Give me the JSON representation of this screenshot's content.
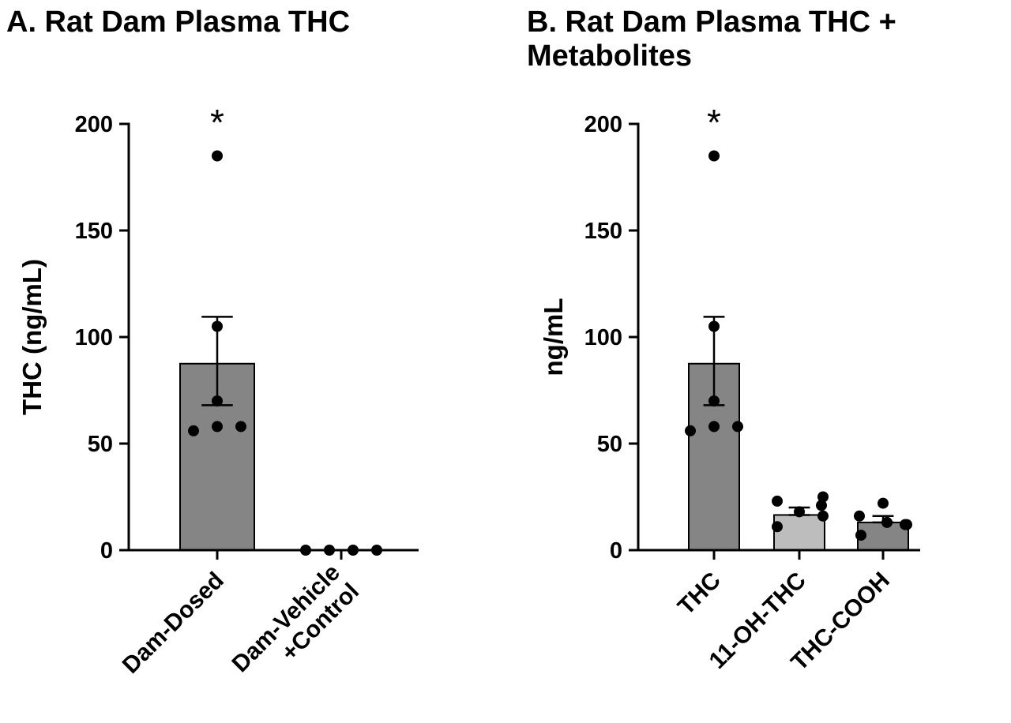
{
  "chart_data": [
    {
      "type": "bar",
      "title": "A. Rat Dam Plasma THC",
      "ylabel": "THC (ng/mL)",
      "ylim": [
        0,
        200
      ],
      "yticks": [
        "0",
        "50",
        "100",
        "150",
        "200"
      ],
      "categories": [
        "Dam-Dosed",
        "Dam-Vehicle\n+Control"
      ],
      "values": [
        87.5,
        0
      ],
      "error_upper": [
        109.5,
        0
      ],
      "error_lower": [
        68,
        0
      ],
      "points": [
        [
          185,
          105,
          70,
          56,
          58,
          58
        ],
        [
          0,
          0,
          0,
          0
        ]
      ],
      "significance": [
        "*",
        ""
      ],
      "bar_colors": [
        "#858585",
        "#858585"
      ],
      "grid": false
    },
    {
      "type": "bar",
      "title": "B. Rat Dam Plasma THC +\nMetabolites",
      "ylabel": "ng/mL",
      "ylim": [
        0,
        200
      ],
      "yticks": [
        "0",
        "50",
        "100",
        "150",
        "200"
      ],
      "categories": [
        "THC",
        "11-OH-THC",
        "THC-COOH"
      ],
      "values": [
        87.5,
        16.5,
        13
      ],
      "error_upper": [
        109.5,
        20,
        16
      ],
      "error_lower": [
        68,
        16.5,
        13
      ],
      "points": [
        [
          185,
          105,
          70,
          56,
          58,
          58
        ],
        [
          23,
          11,
          18,
          21,
          25,
          16
        ],
        [
          16,
          7,
          22,
          12,
          13,
          12
        ]
      ],
      "significance": [
        "*",
        "",
        ""
      ],
      "bar_colors": [
        "#858585",
        "#bdbdbd",
        "#858585"
      ],
      "grid": false
    }
  ]
}
